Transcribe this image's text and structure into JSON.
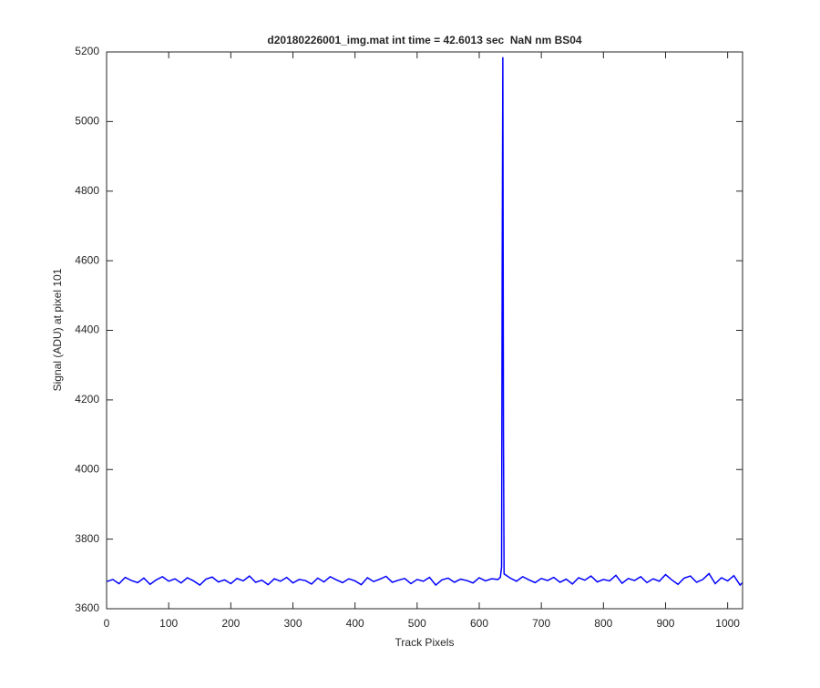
{
  "chart_data": {
    "type": "line",
    "title": "d20180226001_img.mat int time = 42.6013 sec  NaN nm BS04",
    "x_label": "Track Pixels",
    "y_label": "Signal (ADU) at pixel 101",
    "x": [
      0,
      10,
      20,
      30,
      40,
      50,
      60,
      70,
      80,
      90,
      100,
      110,
      120,
      130,
      140,
      150,
      160,
      170,
      180,
      190,
      200,
      210,
      220,
      230,
      240,
      250,
      260,
      270,
      280,
      290,
      300,
      310,
      320,
      330,
      340,
      350,
      360,
      370,
      380,
      390,
      400,
      410,
      420,
      430,
      440,
      450,
      460,
      470,
      480,
      490,
      500,
      510,
      520,
      530,
      540,
      550,
      560,
      570,
      580,
      590,
      600,
      610,
      620,
      630,
      634,
      636,
      637,
      638,
      639,
      640,
      650,
      660,
      670,
      680,
      690,
      700,
      710,
      720,
      730,
      740,
      750,
      760,
      770,
      780,
      790,
      800,
      810,
      820,
      830,
      840,
      850,
      860,
      870,
      880,
      890,
      900,
      910,
      920,
      930,
      940,
      950,
      960,
      970,
      980,
      990,
      1000,
      1010,
      1020,
      1024
    ],
    "series": [
      {
        "color": "#0000ff",
        "values": [
          3678,
          3684,
          3672,
          3690,
          3681,
          3675,
          3688,
          3670,
          3683,
          3692,
          3679,
          3686,
          3674,
          3689,
          3680,
          3668,
          3685,
          3691,
          3677,
          3683,
          3672,
          3687,
          3680,
          3694,
          3676,
          3682,
          3669,
          3686,
          3679,
          3690,
          3674,
          3684,
          3681,
          3671,
          3688,
          3677,
          3692,
          3683,
          3675,
          3686,
          3680,
          3669,
          3689,
          3678,
          3685,
          3693,
          3676,
          3682,
          3687,
          3672,
          3684,
          3679,
          3690,
          3668,
          3683,
          3688,
          3676,
          3685,
          3681,
          3674,
          3689,
          3680,
          3686,
          3684,
          3690,
          3720,
          4600,
          5185,
          4100,
          3700,
          3688,
          3679,
          3692,
          3683,
          3675,
          3687,
          3681,
          3690,
          3676,
          3685,
          3671,
          3689,
          3682,
          3694,
          3677,
          3684,
          3680,
          3696,
          3673,
          3687,
          3681,
          3692,
          3675,
          3686,
          3679,
          3698,
          3683,
          3670,
          3688,
          3694,
          3676,
          3684,
          3701,
          3672,
          3689,
          3680,
          3695,
          3668,
          3675
        ]
      }
    ],
    "xlim": [
      0,
      1024
    ],
    "ylim": [
      3600,
      5200
    ],
    "xticks": [
      0,
      100,
      200,
      300,
      400,
      500,
      600,
      700,
      800,
      900,
      1000
    ],
    "yticks": [
      3600,
      3800,
      4000,
      4200,
      4400,
      4600,
      4800,
      5000,
      5200
    ]
  }
}
